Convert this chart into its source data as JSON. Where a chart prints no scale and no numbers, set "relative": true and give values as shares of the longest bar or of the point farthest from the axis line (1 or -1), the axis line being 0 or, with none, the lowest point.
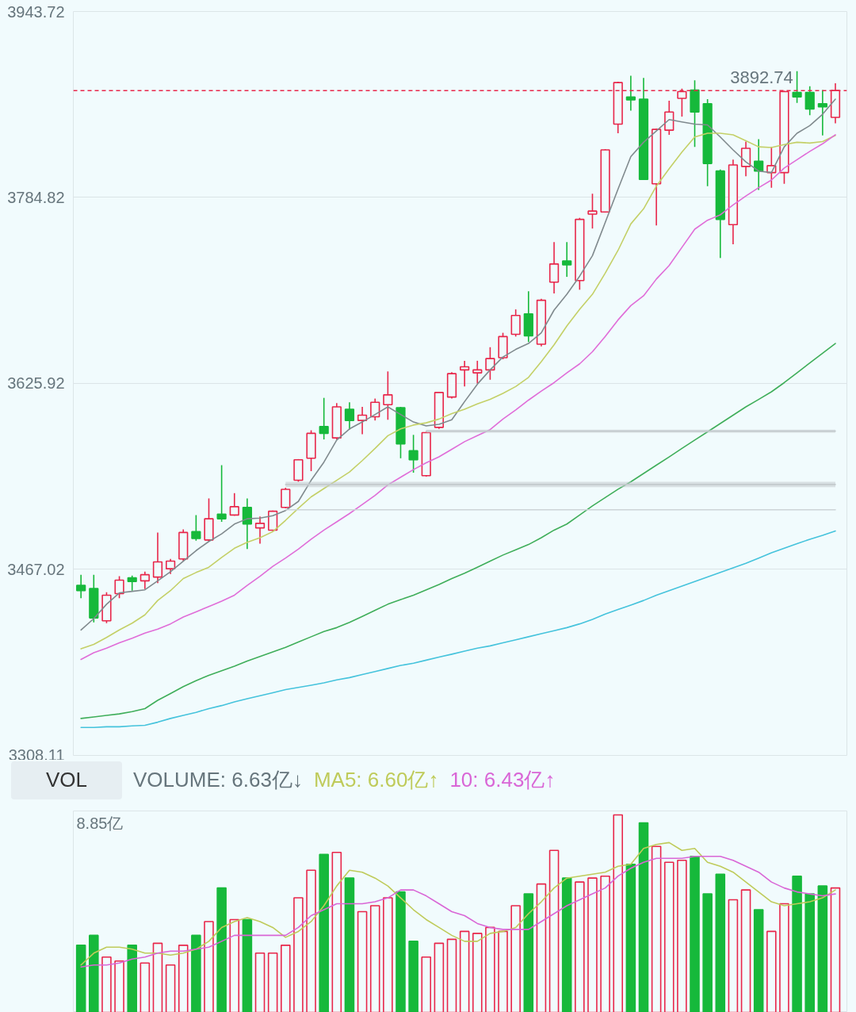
{
  "chart_data": [
    {
      "type": "candlestick",
      "categories": [
        null,
        null,
        null,
        null,
        null,
        null,
        null,
        null,
        null,
        null,
        null,
        null,
        null,
        null,
        null,
        null,
        null,
        null,
        null,
        null,
        null,
        null,
        null,
        null,
        null,
        null,
        null,
        null,
        null,
        null,
        null,
        null,
        null,
        null,
        null,
        null,
        null,
        null,
        null,
        null,
        null,
        null,
        null,
        null,
        null,
        null,
        null,
        null,
        null,
        null,
        null,
        null,
        null,
        null,
        null,
        null,
        null,
        null,
        null,
        null
      ],
      "ohlc": [
        [
          3453.4,
          3462.5,
          3442.4,
          3448.9
        ],
        [
          3450.8,
          3462.5,
          3421.8,
          3425.6
        ],
        [
          3423.1,
          3447.6,
          3421.1,
          3445.0
        ],
        [
          3446.3,
          3461.2,
          3442.4,
          3457.9
        ],
        [
          3459.9,
          3461.8,
          3448.9,
          3456.7
        ],
        [
          3457.3,
          3465.1,
          3450.2,
          3462.5
        ],
        [
          3460.5,
          3498.6,
          3455.4,
          3473.5
        ],
        [
          3467.6,
          3476.0,
          3463.1,
          3474.1
        ],
        [
          3476.0,
          3501.2,
          3474.1,
          3498.6
        ],
        [
          3499.3,
          3513.5,
          3491.5,
          3493.5
        ],
        [
          3492.2,
          3527.7,
          3490.9,
          3510.3
        ],
        [
          3514.2,
          3556.1,
          3507.7,
          3510.3
        ],
        [
          3513.5,
          3532.2,
          3512.9,
          3520.6
        ],
        [
          3520.0,
          3527.7,
          3484.4,
          3505.8
        ],
        [
          3502.5,
          3512.2,
          3489.0,
          3506.4
        ],
        [
          3500.6,
          3517.4,
          3499.9,
          3516.7
        ],
        [
          3520.0,
          3536.8,
          3519.3,
          3535.5
        ],
        [
          3543.2,
          3561.3,
          3541.9,
          3560.7
        ],
        [
          3562.0,
          3585.9,
          3551.0,
          3583.3
        ],
        [
          3589.1,
          3613.6,
          3578.1,
          3583.3
        ],
        [
          3579.4,
          3609.1,
          3578.1,
          3605.9
        ],
        [
          3603.9,
          3609.8,
          3586.5,
          3594.3
        ],
        [
          3594.3,
          3605.9,
          3582.6,
          3598.8
        ],
        [
          3597.5,
          3613.0,
          3594.3,
          3609.8
        ],
        [
          3607.8,
          3636.2,
          3594.9,
          3616.2
        ],
        [
          3605.2,
          3605.9,
          3562.0,
          3574.2
        ],
        [
          3568.4,
          3582.0,
          3549.7,
          3560.7
        ],
        [
          3547.1,
          3584.6,
          3546.4,
          3583.9
        ],
        [
          3588.4,
          3618.8,
          3587.1,
          3618.2
        ],
        [
          3614.3,
          3635.6,
          3613.0,
          3634.3
        ],
        [
          3637.5,
          3645.3,
          3623.3,
          3640.1
        ],
        [
          3635.0,
          3645.3,
          3625.9,
          3637.5
        ],
        [
          3637.5,
          3656.9,
          3629.1,
          3647.2
        ],
        [
          3647.9,
          3669.2,
          3646.6,
          3666.0
        ],
        [
          3667.9,
          3689.2,
          3666.0,
          3684.0
        ],
        [
          3685.3,
          3704.7,
          3661.4,
          3666.6
        ],
        [
          3659.5,
          3698.3,
          3657.6,
          3697.0
        ],
        [
          3712.5,
          3746.7,
          3702.8,
          3728.0
        ],
        [
          3730.6,
          3746.7,
          3717.0,
          3727.3
        ],
        [
          3713.8,
          3767.4,
          3706.0,
          3766.1
        ],
        [
          3770.6,
          3788.1,
          3758.3,
          3773.2
        ],
        [
          3772.5,
          3826.2,
          3771.9,
          3825.5
        ],
        [
          3847.5,
          3883.7,
          3839.7,
          3883.0
        ],
        [
          3870.7,
          3888.8,
          3859.1,
          3868.2
        ],
        [
          3868.8,
          3886.9,
          3799.7,
          3800.3
        ],
        [
          3796.5,
          3843.6,
          3760.9,
          3843.0
        ],
        [
          3842.3,
          3867.5,
          3838.4,
          3857.8
        ],
        [
          3869.5,
          3877.8,
          3853.9,
          3875.3
        ],
        [
          3876.6,
          3885.0,
          3828.1,
          3857.8
        ],
        [
          3864.9,
          3868.8,
          3794.5,
          3813.9
        ],
        [
          3807.4,
          3808.7,
          3733.1,
          3766.1
        ],
        [
          3761.6,
          3817.1,
          3744.8,
          3812.6
        ],
        [
          3811.3,
          3832.6,
          3802.9,
          3826.8
        ],
        [
          3815.8,
          3834.6,
          3791.3,
          3807.4
        ],
        [
          3806.1,
          3828.1,
          3793.2,
          3812.0
        ],
        [
          3806.1,
          3875.9,
          3796.5,
          3875.3
        ],
        [
          3874.6,
          3892.74,
          3865.6,
          3870.7
        ],
        [
          3874.6,
          3879.8,
          3855.2,
          3860.4
        ],
        [
          3864.9,
          3876.6,
          3837.8,
          3862.3
        ],
        [
          3853.3,
          3882.4,
          3848.1,
          3876.2
        ]
      ],
      "colors": [
        "#16b93b",
        "#16b93b",
        "#e8264a",
        "#e8264a",
        "#16b93b",
        "#e8264a",
        "#e8264a",
        "#e8264a",
        "#e8264a",
        "#16b93b",
        "#e8264a",
        "#16b93b",
        "#e8264a",
        "#16b93b",
        "#e8264a",
        "#e8264a",
        "#e8264a",
        "#e8264a",
        "#e8264a",
        "#16b93b",
        "#e8264a",
        "#16b93b",
        "#e8264a",
        "#e8264a",
        "#e8264a",
        "#16b93b",
        "#16b93b",
        "#e8264a",
        "#e8264a",
        "#e8264a",
        "#e8264a",
        "#e8264a",
        "#e8264a",
        "#e8264a",
        "#e8264a",
        "#16b93b",
        "#e8264a",
        "#e8264a",
        "#16b93b",
        "#e8264a",
        "#e8264a",
        "#e8264a",
        "#e8264a",
        "#16b93b",
        "#16b93b",
        "#e8264a",
        "#e8264a",
        "#e8264a",
        "#16b93b",
        "#16b93b",
        "#16b93b",
        "#e8264a",
        "#e8264a",
        "#16b93b",
        "#e8264a",
        "#e8264a",
        "#16b93b",
        "#16b93b",
        "#16b93b",
        "#e8264a"
      ],
      "series": [
        {
          "type": "line",
          "color": "#808a8e",
          "values": [
            3415.3,
            3425.0,
            3437.3,
            3447.0,
            3448.3,
            3449.6,
            3457.3,
            3465.1,
            3474.1,
            3483.1,
            3490.9,
            3497.4,
            3505.8,
            3510.3,
            3510.9,
            3512.9,
            3517.4,
            3525.1,
            3543.2,
            3558.7,
            3577.5,
            3587.1,
            3593.0,
            3599.4,
            3605.9,
            3599.4,
            3593.0,
            3589.7,
            3591.0,
            3594.9,
            3610.4,
            3625.3,
            3637.5,
            3648.5,
            3655.0,
            3660.1,
            3669.2,
            3688.6,
            3702.1,
            3717.6,
            3735.1,
            3763.5,
            3791.9,
            3819.7,
            3832.0,
            3841.7,
            3851.4,
            3849.4,
            3847.5,
            3846.8,
            3836.5,
            3825.5,
            3815.2,
            3807.4,
            3806.1,
            3828.1,
            3839.7,
            3846.2,
            3855.9,
            3868.8
          ]
        },
        {
          "type": "line",
          "color": "#c4d067",
          "values": [
            3399.2,
            3403.0,
            3408.9,
            3415.3,
            3421.1,
            3428.2,
            3440.5,
            3448.9,
            3459.2,
            3464.4,
            3468.9,
            3477.3,
            3485.1,
            3490.2,
            3494.1,
            3499.3,
            3509.0,
            3519.3,
            3529.0,
            3536.1,
            3543.2,
            3550.3,
            3560.0,
            3570.4,
            3581.3,
            3587.1,
            3590.4,
            3592.3,
            3595.5,
            3600.1,
            3603.9,
            3608.5,
            3612.3,
            3617.5,
            3623.3,
            3631.1,
            3644.6,
            3658.9,
            3675.0,
            3689.2,
            3702.1,
            3720.2,
            3739.6,
            3762.2,
            3775.1,
            3794.5,
            3809.4,
            3823.6,
            3836.5,
            3839.7,
            3839.7,
            3838.4,
            3833.3,
            3828.1,
            3827.5,
            3830.0,
            3832.0,
            3831.3,
            3832.6,
            3837.8
          ]
        },
        {
          "type": "line",
          "color": "#e06dd8",
          "values": [
            3390.1,
            3395.9,
            3399.8,
            3404.3,
            3408.2,
            3412.7,
            3416.0,
            3420.5,
            3426.3,
            3430.8,
            3435.3,
            3439.9,
            3445.0,
            3453.4,
            3461.2,
            3469.6,
            3476.7,
            3484.4,
            3492.8,
            3500.6,
            3507.7,
            3514.8,
            3522.5,
            3530.3,
            3539.3,
            3545.8,
            3552.3,
            3558.1,
            3563.2,
            3569.7,
            3576.2,
            3581.3,
            3586.5,
            3595.5,
            3603.3,
            3611.7,
            3619.4,
            3626.6,
            3635.0,
            3642.7,
            3653.0,
            3666.0,
            3680.2,
            3692.4,
            3700.8,
            3715.1,
            3726.7,
            3742.2,
            3757.7,
            3765.4,
            3770.0,
            3778.4,
            3786.1,
            3793.2,
            3799.7,
            3810.0,
            3817.1,
            3824.2,
            3830.7,
            3838.4
          ]
        },
        {
          "type": "line",
          "color": "#3fae5a",
          "values": [
            3339.7,
            3341.0,
            3342.3,
            3343.6,
            3345.5,
            3348.1,
            3355.2,
            3361.0,
            3366.9,
            3372.0,
            3376.5,
            3380.4,
            3384.3,
            3388.8,
            3392.7,
            3396.6,
            3400.5,
            3405.0,
            3409.5,
            3414.0,
            3417.3,
            3421.8,
            3426.9,
            3432.1,
            3437.3,
            3441.2,
            3445.0,
            3449.6,
            3454.1,
            3459.2,
            3463.8,
            3468.9,
            3474.1,
            3479.3,
            3483.8,
            3488.3,
            3494.1,
            3500.6,
            3505.8,
            3513.5,
            3521.3,
            3528.4,
            3535.5,
            3541.9,
            3549.0,
            3556.1,
            3563.2,
            3570.4,
            3577.5,
            3584.6,
            3591.7,
            3598.8,
            3605.9,
            3612.3,
            3618.8,
            3626.6,
            3635.0,
            3643.4,
            3651.7,
            3660.1
          ]
        },
        {
          "type": "line",
          "color": "#45c3dc",
          "values": [
            3332.0,
            3332.0,
            3332.6,
            3332.6,
            3333.3,
            3333.9,
            3336.5,
            3339.7,
            3342.3,
            3344.9,
            3348.1,
            3350.7,
            3353.9,
            3356.5,
            3359.1,
            3361.7,
            3364.3,
            3366.2,
            3368.1,
            3370.1,
            3372.7,
            3374.6,
            3377.2,
            3379.8,
            3382.4,
            3385.0,
            3386.9,
            3389.5,
            3392.1,
            3394.6,
            3397.2,
            3399.8,
            3401.7,
            3404.3,
            3406.9,
            3409.5,
            3412.1,
            3414.7,
            3417.3,
            3420.5,
            3424.4,
            3428.9,
            3432.8,
            3436.6,
            3440.5,
            3445.0,
            3448.9,
            3452.8,
            3456.7,
            3460.5,
            3464.4,
            3468.3,
            3472.2,
            3476.7,
            3481.2,
            3485.1,
            3489.0,
            3492.8,
            3496.1,
            3499.9
          ]
        },
        {
          "type": "line",
          "color": "#cdd4d7",
          "values": [
            null,
            null,
            null,
            null,
            null,
            null,
            null,
            null,
            null,
            null,
            null,
            null,
            null,
            null,
            null,
            null,
            3518.0,
            3518.0,
            3518.0,
            3518.0,
            3518.0,
            3518.0,
            3518.0,
            3518.0,
            3518.0,
            3518.0,
            3518.0,
            3518.0,
            3518.0,
            3518.0,
            3518.0,
            3518.0,
            3518.0,
            3518.0,
            3518.0,
            3518.0,
            3518.0,
            3518.0,
            3518.0,
            3518.0,
            3518.0,
            3518.0,
            3518.0,
            3518.0,
            3518.0,
            3518.0,
            3518.0,
            3518.0,
            3518.0,
            3518.0,
            3518.0,
            3518.0,
            3518.0,
            3518.0,
            3518.0,
            3518.0,
            3518.0,
            3518.0,
            3518.0,
            3518.0
          ]
        },
        {
          "type": "line",
          "color": "#c3cacd",
          "values": [
            null,
            null,
            null,
            null,
            null,
            null,
            null,
            null,
            null,
            null,
            null,
            null,
            null,
            null,
            null,
            null,
            3539.6,
            3539.6,
            3539.6,
            3539.6,
            3539.6,
            3539.6,
            3539.6,
            3539.6,
            3539.6,
            3539.6,
            3539.6,
            3539.6,
            3539.6,
            3539.6,
            3539.6,
            3539.6,
            3539.6,
            3539.6,
            3539.6,
            3539.6,
            3539.6,
            3539.6,
            3539.6,
            3539.6,
            3539.6,
            3539.6,
            3539.6,
            3539.6,
            3539.6,
            3539.6,
            3539.6,
            3539.6,
            3539.6,
            3539.6,
            3539.6,
            3539.6,
            3539.6,
            3539.6,
            3539.6,
            3539.6,
            3539.6,
            3539.6,
            3539.6,
            3539.6
          ],
          "lower": [
            null,
            null,
            null,
            null,
            null,
            null,
            null,
            null,
            null,
            null,
            null,
            null,
            null,
            null,
            null,
            null,
            3537.4,
            3537.4,
            3537.4,
            3537.4,
            3537.4,
            3537.4,
            3537.4,
            3537.4,
            3537.4,
            3537.4,
            3537.4,
            3537.4,
            3537.4,
            3537.4,
            3537.4,
            3537.4,
            3537.4,
            3537.4,
            3537.4,
            3537.4,
            3537.4,
            3537.4,
            3537.4,
            3537.4,
            3537.4,
            3537.4,
            3537.4,
            3537.4,
            3537.4,
            3537.4,
            3537.4,
            3537.4,
            3537.4,
            3537.4,
            3537.4,
            3537.4,
            3537.4,
            3537.4,
            3537.4,
            3537.4,
            3537.4,
            3537.4,
            3537.4,
            3537.4
          ],
          "upper": [
            null,
            null,
            null,
            null,
            null,
            null,
            null,
            null,
            null,
            null,
            null,
            null,
            null,
            null,
            null,
            null,
            3541.9,
            3541.9,
            3541.9,
            3541.9,
            3541.9,
            3541.9,
            3541.9,
            3541.9,
            3541.9,
            3541.9,
            3541.9,
            3541.9,
            3541.9,
            3541.9,
            3541.9,
            3541.9,
            3541.9,
            3541.9,
            3541.9,
            3541.9,
            3541.9,
            3541.9,
            3541.9,
            3541.9,
            3541.9,
            3541.9,
            3541.9,
            3541.9,
            3541.9,
            3541.9,
            3541.9,
            3541.9,
            3541.9,
            3541.9,
            3541.9,
            3541.9,
            3541.9,
            3541.9,
            3541.9,
            3541.9,
            3541.9,
            3541.9,
            3541.9,
            3541.9
          ]
        },
        {
          "type": "line",
          "color": "#c3cacd",
          "values": [
            null,
            null,
            null,
            null,
            null,
            null,
            null,
            null,
            null,
            null,
            null,
            null,
            null,
            null,
            null,
            null,
            null,
            null,
            null,
            null,
            null,
            null,
            null,
            null,
            null,
            null,
            null,
            3585.2,
            3585.2,
            3585.2,
            3585.2,
            3585.2,
            3585.2,
            3585.2,
            3585.2,
            3585.2,
            3585.2,
            3585.2,
            3585.2,
            3585.2,
            3585.2,
            3585.2,
            3585.2,
            3585.2,
            3585.2,
            3585.2,
            3585.2,
            3585.2,
            3585.2,
            3585.2,
            3585.2,
            3585.2,
            3585.2,
            3585.2,
            3585.2,
            3585.2,
            3585.2,
            3585.2,
            3585.2,
            3585.2
          ],
          "lower": [
            null,
            null,
            null,
            null,
            null,
            null,
            null,
            null,
            null,
            null,
            null,
            null,
            null,
            null,
            null,
            null,
            null,
            null,
            null,
            null,
            null,
            null,
            null,
            null,
            null,
            null,
            null,
            3583.9,
            3583.9,
            3583.9,
            3583.9,
            3583.9,
            3583.9,
            3583.9,
            3583.9,
            3583.9,
            3583.9,
            3583.9,
            3583.9,
            3583.9,
            3583.9,
            3583.9,
            3583.9,
            3583.9,
            3583.9,
            3583.9,
            3583.9,
            3583.9,
            3583.9,
            3583.9,
            3583.9,
            3583.9,
            3583.9,
            3583.9,
            3583.9,
            3583.9,
            3583.9,
            3583.9,
            3583.9,
            3583.9
          ],
          "upper": [
            null,
            null,
            null,
            null,
            null,
            null,
            null,
            null,
            null,
            null,
            null,
            null,
            null,
            null,
            null,
            null,
            null,
            null,
            null,
            null,
            null,
            null,
            null,
            null,
            null,
            null,
            null,
            3586.5,
            3586.5,
            3586.5,
            3586.5,
            3586.5,
            3586.5,
            3586.5,
            3586.5,
            3586.5,
            3586.5,
            3586.5,
            3586.5,
            3586.5,
            3586.5,
            3586.5,
            3586.5,
            3586.5,
            3586.5,
            3586.5,
            3586.5,
            3586.5,
            3586.5,
            3586.5,
            3586.5,
            3586.5,
            3586.5,
            3586.5,
            3586.5,
            3586.5,
            3586.5,
            3586.5,
            3586.5,
            3586.5
          ]
        }
      ],
      "ylim": [
        3308.11,
        3943.72
      ],
      "yticks": [
        3308.11,
        3467.02,
        3625.92,
        3784.82,
        3943.72
      ],
      "grid": "y",
      "tick_labels": "y",
      "ref_lines": [
        {
          "axis": "y",
          "value": 3876.2,
          "color": "#e8264a",
          "line_style": "dashed"
        }
      ],
      "annotations": [
        "3892.74"
      ]
    },
    {
      "type": "bar",
      "relative": true,
      "categories": [
        null,
        null,
        null,
        null,
        null,
        null,
        null,
        null,
        null,
        null,
        null,
        null,
        null,
        null,
        null,
        null,
        null,
        null,
        null,
        null,
        null,
        null,
        null,
        null,
        null,
        null,
        null,
        null,
        null,
        null,
        null,
        null,
        null,
        null,
        null,
        null,
        null,
        null,
        null,
        null,
        null,
        null,
        null,
        null,
        null,
        null,
        null,
        null,
        null,
        null,
        null,
        null,
        null,
        null,
        null,
        null,
        null,
        null,
        null,
        null
      ],
      "series": [
        {
          "type": "bar",
          "colors": [
            "#16b93b",
            "#16b93b",
            "#e8264a",
            "#e8264a",
            "#16b93b",
            "#e8264a",
            "#e8264a",
            "#e8264a",
            "#e8264a",
            "#16b93b",
            "#e8264a",
            "#16b93b",
            "#e8264a",
            "#16b93b",
            "#e8264a",
            "#e8264a",
            "#e8264a",
            "#e8264a",
            "#e8264a",
            "#16b93b",
            "#e8264a",
            "#16b93b",
            "#e8264a",
            "#e8264a",
            "#e8264a",
            "#16b93b",
            "#16b93b",
            "#e8264a",
            "#e8264a",
            "#e8264a",
            "#e8264a",
            "#e8264a",
            "#e8264a",
            "#e8264a",
            "#e8264a",
            "#16b93b",
            "#e8264a",
            "#e8264a",
            "#16b93b",
            "#e8264a",
            "#e8264a",
            "#e8264a",
            "#e8264a",
            "#16b93b",
            "#16b93b",
            "#e8264a",
            "#e8264a",
            "#e8264a",
            "#16b93b",
            "#16b93b",
            "#16b93b",
            "#e8264a",
            "#e8264a",
            "#16b93b",
            "#e8264a",
            "#e8264a",
            "#16b93b",
            "#16b93b",
            "#16b93b",
            "#e8264a"
          ],
          "values": [
            0.34,
            0.39,
            0.28,
            0.26,
            0.34,
            0.25,
            0.35,
            0.24,
            0.34,
            0.39,
            0.46,
            0.63,
            0.47,
            0.47,
            0.3,
            0.3,
            0.34,
            0.58,
            0.72,
            0.8,
            0.81,
            0.68,
            0.51,
            0.54,
            0.58,
            0.61,
            0.36,
            0.28,
            0.35,
            0.37,
            0.41,
            0.4,
            0.43,
            0.41,
            0.54,
            0.6,
            0.65,
            0.82,
            0.68,
            0.66,
            0.68,
            0.69,
            1,
            0.75,
            0.96,
            0.84,
            0.76,
            0.77,
            0.79,
            0.6,
            0.7,
            0.57,
            0.62,
            0.52,
            0.41,
            0.55,
            0.69,
            0.6,
            0.64,
            0.63
          ]
        },
        {
          "type": "line",
          "name": "MA5: 6.60亿↑",
          "color": "#bfcb5a",
          "values": [
            0.24,
            0.3,
            0.33,
            0.33,
            0.32,
            0.3,
            0.3,
            0.29,
            0.3,
            0.32,
            0.36,
            0.43,
            0.46,
            0.48,
            0.46,
            0.43,
            0.38,
            0.41,
            0.46,
            0.54,
            0.64,
            0.72,
            0.71,
            0.68,
            0.64,
            0.58,
            0.52,
            0.47,
            0.43,
            0.39,
            0.36,
            0.36,
            0.4,
            0.41,
            0.43,
            0.5,
            0.56,
            0.63,
            0.68,
            0.69,
            0.7,
            0.71,
            0.74,
            0.75,
            0.83,
            0.85,
            0.86,
            0.82,
            0.83,
            0.76,
            0.74,
            0.71,
            0.66,
            0.61,
            0.56,
            0.54,
            0.55,
            0.56,
            0.58,
            0.62
          ]
        },
        {
          "type": "line",
          "name": "10: 6.43亿↑",
          "color": "#d966d6",
          "values": [
            0.23,
            0.24,
            0.24,
            0.25,
            0.27,
            0.28,
            0.3,
            0.31,
            0.31,
            0.32,
            0.33,
            0.36,
            0.39,
            0.39,
            0.39,
            0.39,
            0.39,
            0.43,
            0.49,
            0.52,
            0.55,
            0.55,
            0.55,
            0.56,
            0.58,
            0.62,
            0.62,
            0.59,
            0.55,
            0.51,
            0.49,
            0.45,
            0.43,
            0.42,
            0.42,
            0.42,
            0.46,
            0.5,
            0.54,
            0.57,
            0.6,
            0.63,
            0.69,
            0.73,
            0.76,
            0.78,
            0.78,
            0.78,
            0.79,
            0.79,
            0.79,
            0.77,
            0.74,
            0.71,
            0.66,
            0.63,
            0.61,
            0.6,
            0.59,
            0.6
          ]
        }
      ],
      "tick_labels": "y",
      "legend": "top left",
      "annotations": [
        "VOL",
        "VOLUME: 6.63亿↓",
        "8.85亿"
      ]
    }
  ]
}
